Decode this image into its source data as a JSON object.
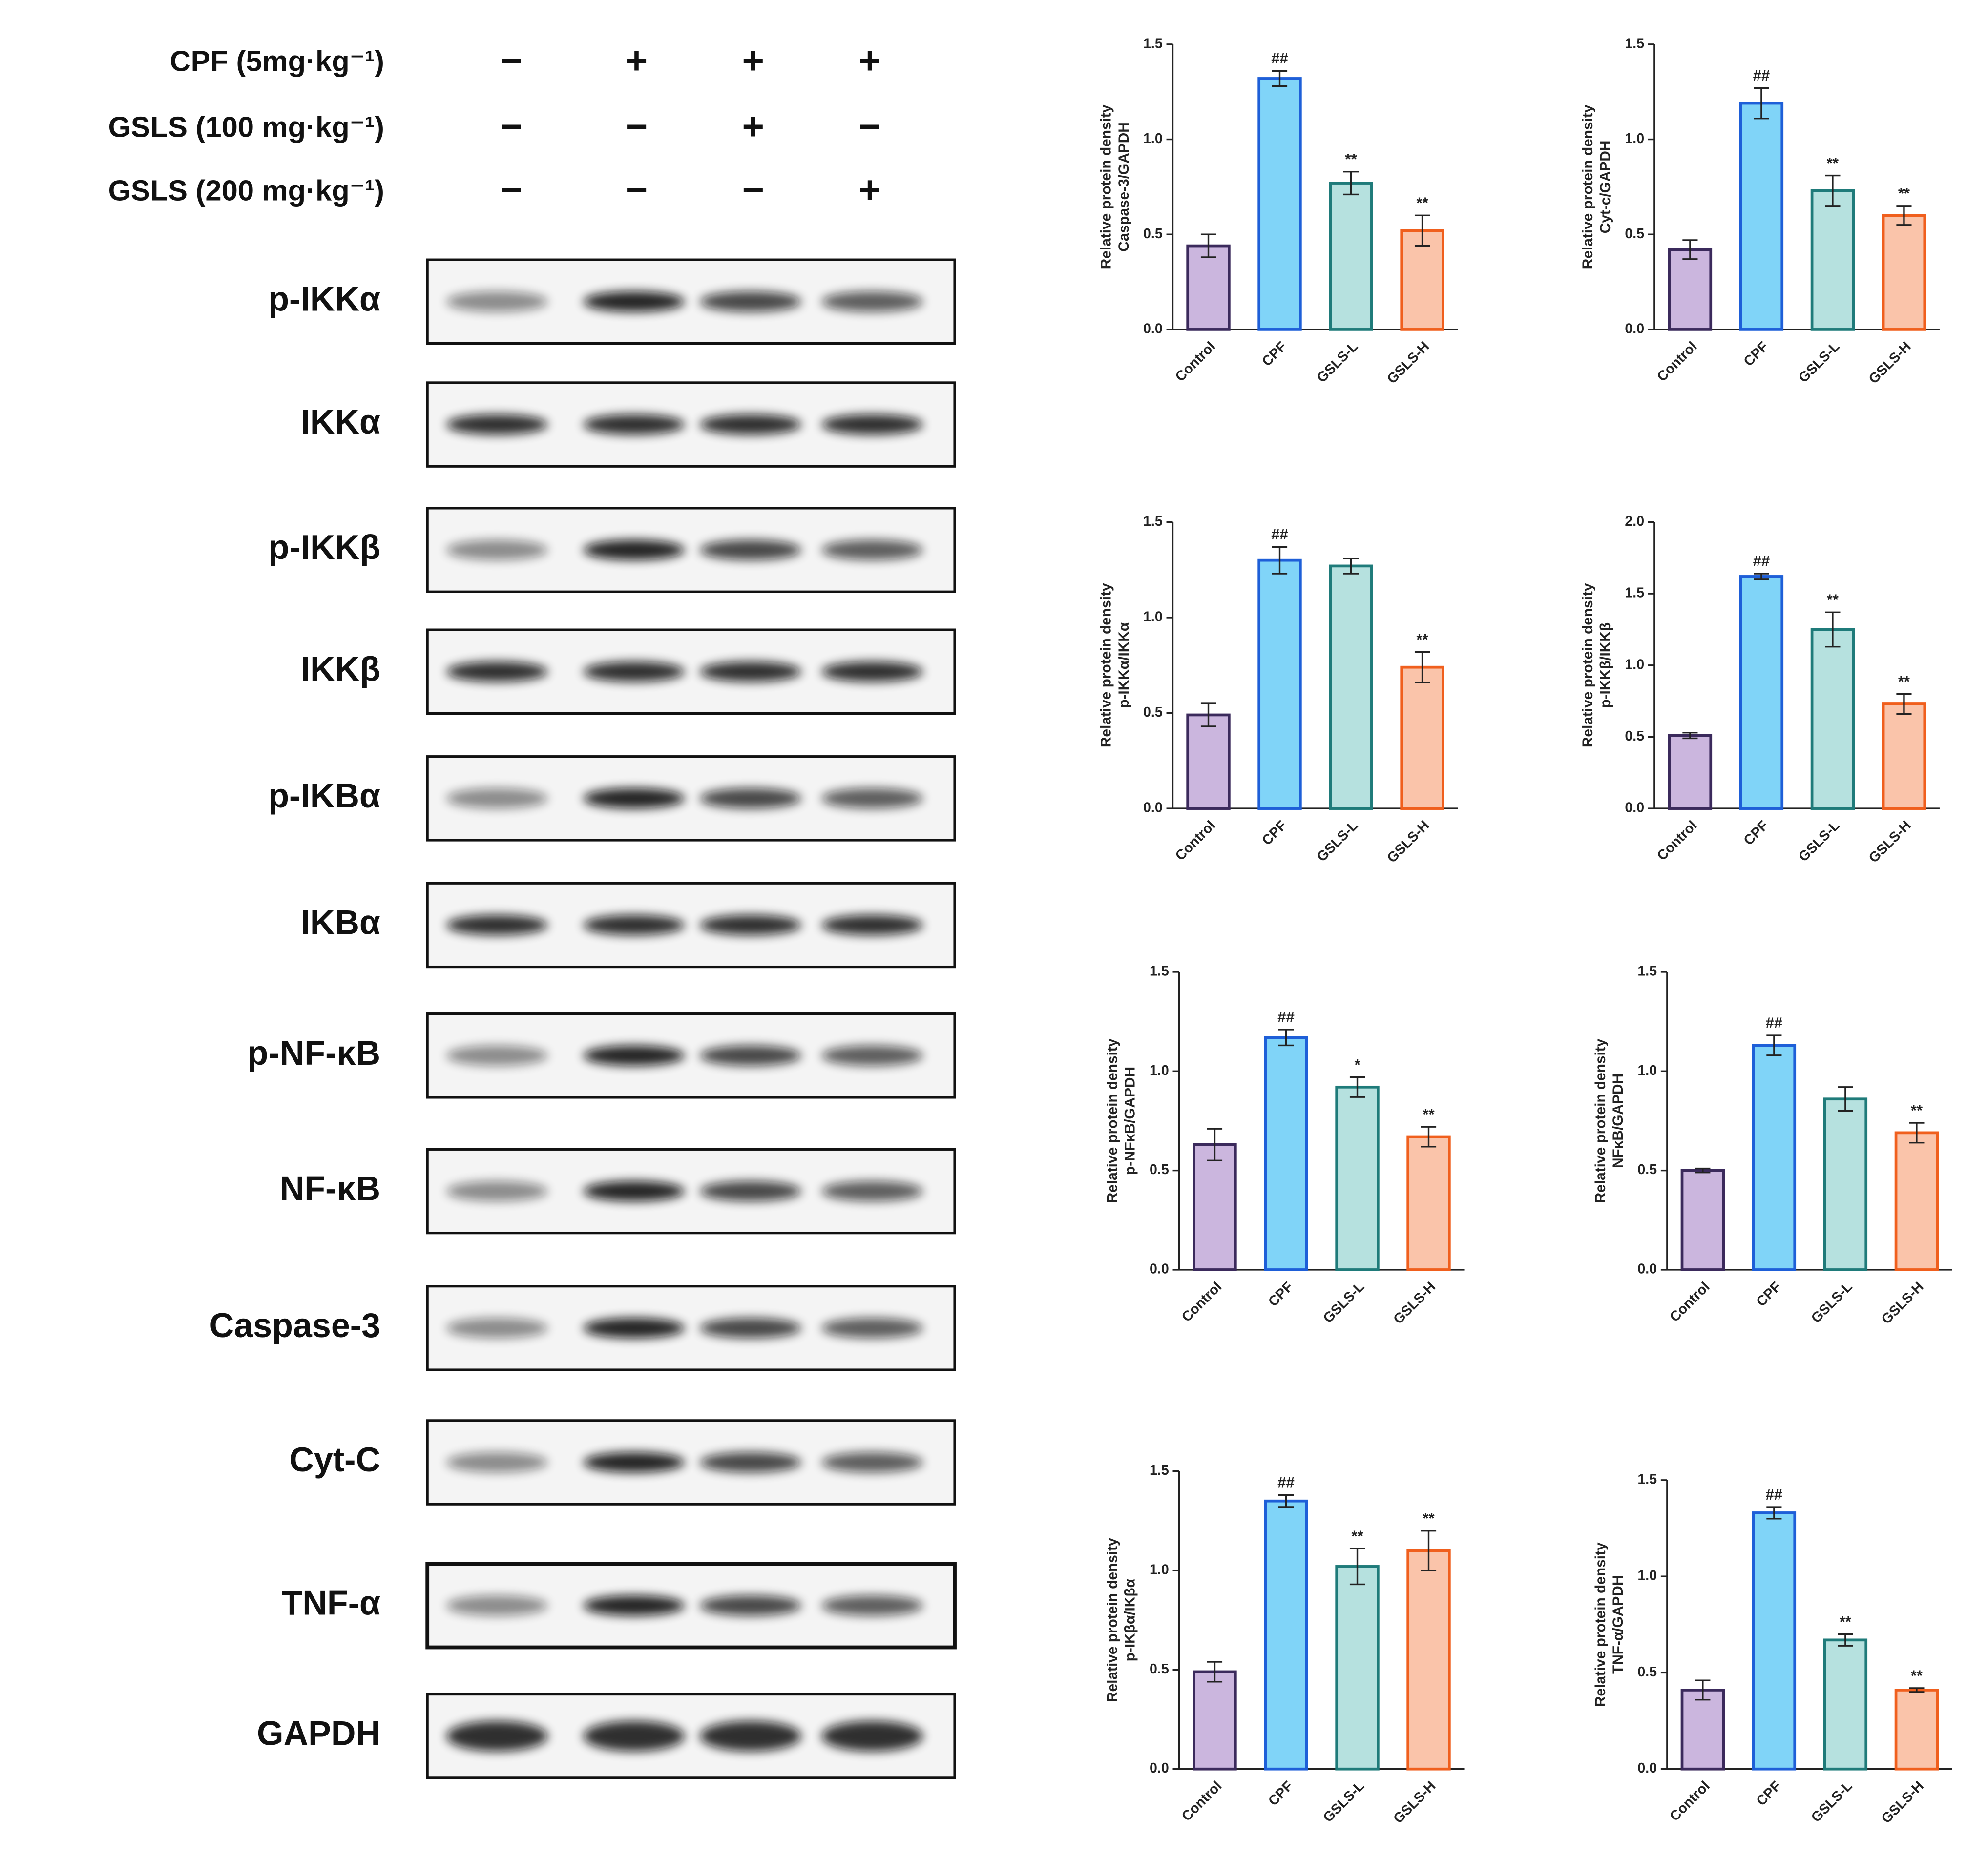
{
  "blot": {
    "treatments": [
      {
        "label": "CPF  (5mg·kg⁻¹)",
        "signs": [
          "−",
          "+",
          "+",
          "+"
        ]
      },
      {
        "label": "GSLS (100 mg·kg⁻¹)",
        "signs": [
          "−",
          "−",
          "+",
          "−"
        ]
      },
      {
        "label": "GSLS (200 mg·kg⁻¹)",
        "signs": [
          "−",
          "−",
          "−",
          "+"
        ]
      }
    ],
    "proteins": [
      "p-IKKα",
      "IKKα",
      "p-IKKβ",
      "IKKβ",
      "p-IKBα",
      "IKBα",
      "p-NF-κB",
      "NF-κB",
      "Caspase-3",
      "Cyt-C",
      "TNF-α",
      "GAPDH"
    ]
  },
  "chart_data": [
    {
      "type": "bar",
      "ylabel": [
        "Relative protein density",
        "Caspase-3/GAPDH"
      ],
      "categories": [
        "Control",
        "CPF",
        "GSLS-L",
        "GSLS-H"
      ],
      "values": [
        0.44,
        1.32,
        0.77,
        0.52
      ],
      "errors": [
        0.06,
        0.04,
        0.06,
        0.08
      ],
      "annotations": [
        null,
        "##",
        "**",
        "**"
      ],
      "colors": [
        "#cbb6de",
        "#80d4f8",
        "#b6e1df",
        "#fac4aa"
      ],
      "edge_colors": [
        "#3b2a5c",
        "#1e5fd8",
        "#1f7b7a",
        "#f05f1d"
      ],
      "ylim": [
        0,
        1.5
      ],
      "yticks": [
        {
          "value": 0,
          "label": "0.0"
        },
        {
          "value": 0.5,
          "label": "0.5"
        },
        {
          "value": 1,
          "label": "1.0"
        },
        {
          "value": 1.5,
          "label": "1.5"
        }
      ]
    },
    {
      "type": "bar",
      "ylabel": [
        "Relative protein density",
        "Cyt-c/GAPDH"
      ],
      "categories": [
        "Control",
        "CPF",
        "GSLS-L",
        "GSLS-H"
      ],
      "values": [
        0.42,
        1.19,
        0.73,
        0.6
      ],
      "errors": [
        0.05,
        0.08,
        0.08,
        0.05
      ],
      "annotations": [
        null,
        "##",
        "**",
        "**"
      ],
      "colors": [
        "#cbb6de",
        "#80d4f8",
        "#b6e1df",
        "#fac4aa"
      ],
      "edge_colors": [
        "#3b2a5c",
        "#1e5fd8",
        "#1f7b7a",
        "#f05f1d"
      ],
      "ylim": [
        0,
        1.5
      ],
      "yticks": [
        {
          "value": 0,
          "label": "0.0"
        },
        {
          "value": 0.5,
          "label": "0.5"
        },
        {
          "value": 1,
          "label": "1.0"
        },
        {
          "value": 1.5,
          "label": "1.5"
        }
      ]
    },
    {
      "type": "bar",
      "ylabel": [
        "Relative protein density",
        "p-IKKα/IKKα"
      ],
      "categories": [
        "Control",
        "CPF",
        "GSLS-L",
        "GSLS-H"
      ],
      "values": [
        0.49,
        1.3,
        1.27,
        0.74
      ],
      "errors": [
        0.06,
        0.07,
        0.04,
        0.08
      ],
      "annotations": [
        null,
        "##",
        null,
        "**"
      ],
      "colors": [
        "#cbb6de",
        "#80d4f8",
        "#b6e1df",
        "#fac4aa"
      ],
      "edge_colors": [
        "#3b2a5c",
        "#1e5fd8",
        "#1f7b7a",
        "#f05f1d"
      ],
      "ylim": [
        0,
        1.5
      ],
      "yticks": [
        {
          "value": 0,
          "label": "0.0"
        },
        {
          "value": 0.5,
          "label": "0.5"
        },
        {
          "value": 1,
          "label": "1.0"
        },
        {
          "value": 1.5,
          "label": "1.5"
        }
      ]
    },
    {
      "type": "bar",
      "ylabel": [
        "Relative protein density",
        "p-IKKβ/IKKβ"
      ],
      "categories": [
        "Control",
        "CPF",
        "GSLS-L",
        "GSLS-H"
      ],
      "values": [
        0.51,
        1.62,
        1.25,
        0.73
      ],
      "errors": [
        0.02,
        0.02,
        0.12,
        0.07
      ],
      "annotations": [
        null,
        "##",
        "**",
        "**"
      ],
      "colors": [
        "#cbb6de",
        "#80d4f8",
        "#b6e1df",
        "#fac4aa"
      ],
      "edge_colors": [
        "#3b2a5c",
        "#1e5fd8",
        "#1f7b7a",
        "#f05f1d"
      ],
      "ylim": [
        0,
        2
      ],
      "yticks": [
        {
          "value": 0,
          "label": "0.0"
        },
        {
          "value": 0.5,
          "label": "0.5"
        },
        {
          "value": 1,
          "label": "1.0"
        },
        {
          "value": 1.5,
          "label": "1.5"
        },
        {
          "value": 2,
          "label": "2.0"
        }
      ]
    },
    {
      "type": "bar",
      "ylabel": [
        "Relative protein density",
        "p-NFκB/GAPDH"
      ],
      "categories": [
        "Control",
        "CPF",
        "GSLS-L",
        "GSLS-H"
      ],
      "values": [
        0.63,
        1.17,
        0.92,
        0.67
      ],
      "errors": [
        0.08,
        0.04,
        0.05,
        0.05
      ],
      "annotations": [
        null,
        "##",
        "*",
        "**"
      ],
      "colors": [
        "#cbb6de",
        "#80d4f8",
        "#b6e1df",
        "#fac4aa"
      ],
      "edge_colors": [
        "#3b2a5c",
        "#1e5fd8",
        "#1f7b7a",
        "#f05f1d"
      ],
      "ylim": [
        0,
        1.5
      ],
      "yticks": [
        {
          "value": 0,
          "label": "0.0"
        },
        {
          "value": 0.5,
          "label": "0.5"
        },
        {
          "value": 1,
          "label": "1.0"
        },
        {
          "value": 1.5,
          "label": "1.5"
        }
      ]
    },
    {
      "type": "bar",
      "ylabel": [
        "Relative protein density",
        "NFκB/GAPDH"
      ],
      "categories": [
        "Control",
        "CPF",
        "GSLS-L",
        "GSLS-H"
      ],
      "values": [
        0.5,
        1.13,
        0.86,
        0.69
      ],
      "errors": [
        0.01,
        0.05,
        0.06,
        0.05
      ],
      "annotations": [
        null,
        "##",
        null,
        "**"
      ],
      "colors": [
        "#cbb6de",
        "#80d4f8",
        "#b6e1df",
        "#fac4aa"
      ],
      "edge_colors": [
        "#3b2a5c",
        "#1e5fd8",
        "#1f7b7a",
        "#f05f1d"
      ],
      "ylim": [
        0,
        1.5
      ],
      "yticks": [
        {
          "value": 0,
          "label": "0.0"
        },
        {
          "value": 0.5,
          "label": "0.5"
        },
        {
          "value": 1,
          "label": "1.0"
        },
        {
          "value": 1.5,
          "label": "1.5"
        }
      ]
    },
    {
      "type": "bar",
      "ylabel": [
        "Relative protein density",
        "p-IKβα/IKβα"
      ],
      "categories": [
        "Control",
        "CPF",
        "GSLS-L",
        "GSLS-H"
      ],
      "values": [
        0.49,
        1.35,
        1.02,
        1.1
      ],
      "errors": [
        0.05,
        0.03,
        0.09,
        0.1
      ],
      "annotations": [
        null,
        "##",
        "**",
        "**"
      ],
      "colors": [
        "#cbb6de",
        "#80d4f8",
        "#b6e1df",
        "#fac4aa"
      ],
      "edge_colors": [
        "#3b2a5c",
        "#1e5fd8",
        "#1f7b7a",
        "#f05f1d"
      ],
      "ylim": [
        0,
        1.5
      ],
      "yticks": [
        {
          "value": 0,
          "label": "0.0"
        },
        {
          "value": 0.5,
          "label": "0.5"
        },
        {
          "value": 1,
          "label": "1.0"
        },
        {
          "value": 1.5,
          "label": "1.5"
        }
      ]
    },
    {
      "type": "bar",
      "ylabel": [
        "Relative protein density",
        "TNF-α/GAPDH"
      ],
      "categories": [
        "Control",
        "CPF",
        "GSLS-L",
        "GSLS-H"
      ],
      "values": [
        0.41,
        1.33,
        0.67,
        0.41
      ],
      "errors": [
        0.05,
        0.03,
        0.03,
        0.01
      ],
      "annotations": [
        null,
        "##",
        "**",
        "**"
      ],
      "colors": [
        "#cbb6de",
        "#80d4f8",
        "#b6e1df",
        "#fac4aa"
      ],
      "edge_colors": [
        "#3b2a5c",
        "#1e5fd8",
        "#1f7b7a",
        "#f05f1d"
      ],
      "ylim": [
        0,
        1.5
      ],
      "yticks": [
        {
          "value": 0,
          "label": "0.0"
        },
        {
          "value": 0.5,
          "label": "0.5"
        },
        {
          "value": 1,
          "label": "1.0"
        },
        {
          "value": 1.5,
          "label": "1.5"
        }
      ]
    }
  ]
}
